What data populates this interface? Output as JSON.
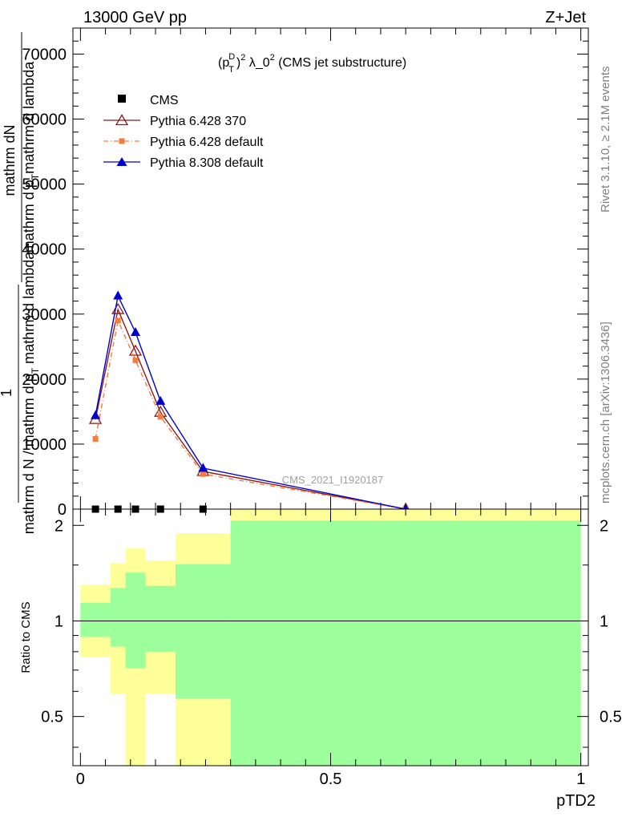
{
  "header": {
    "left": "13000 GeV pp",
    "right": "Z+Jet"
  },
  "side_text": {
    "rivet": "Rivet 3.1.10, ≥ 2.1M events",
    "mcplots": "mcplots.cern.ch [arXiv:1306.3436]"
  },
  "colors": {
    "cms": "#000000",
    "pythia6_370": "#8b1a1a",
    "pythia6_default": "#f47c3c",
    "pythia8_default": "#0000cc",
    "band_inner": "#9cff9c",
    "band_outer": "#ffff99"
  },
  "chart_data": [
    {
      "type": "line",
      "title_parts": {
        "base": "(p",
        "sub": "T",
        "sup1": "D",
        "sup2": "2",
        "rest": " λ_0",
        "sup3": "2",
        "tail": " (CMS jet substructure)"
      },
      "ylabel_numerator": "mathrm dN",
      "ylabel_numerator_1": "1",
      "ylabel_den_line1": "mathrm d p",
      "ylabel_den_sub": "T",
      "ylabel_den_line2": "mathrm d lambda",
      "ylabel_den_full": "mathrm d N / mathrm d p",
      "ylabel_den_sub2": "T",
      "ylabel_den_tail": " mathrm d lambda",
      "watermark": "CMS_2021_I1920187",
      "xlim": [
        -0.015,
        1.015
      ],
      "ylim": [
        0,
        74000
      ],
      "yticks": [
        0,
        10000,
        20000,
        30000,
        40000,
        50000,
        60000,
        70000
      ],
      "ytick_labels": [
        "0",
        "10000",
        "20000",
        "30000",
        "40000",
        "50000",
        "60000",
        "70000"
      ],
      "legend_position": "top-left",
      "series": [
        {
          "name": "CMS",
          "marker": "square",
          "x": [
            0.03,
            0.075,
            0.11,
            0.16,
            0.245
          ],
          "y": [
            0,
            0,
            0,
            0,
            0
          ]
        },
        {
          "name": "Pythia 6.428 370",
          "marker": "open-triangle",
          "x": [
            0.03,
            0.075,
            0.11,
            0.16,
            0.245,
            0.65
          ],
          "y": [
            13800,
            30700,
            24300,
            14900,
            5800,
            0
          ]
        },
        {
          "name": "Pythia 6.428 default",
          "marker": "small-square",
          "x": [
            0.03,
            0.075,
            0.11,
            0.16,
            0.245,
            0.65
          ],
          "y": [
            10800,
            29000,
            22900,
            14200,
            5400,
            0
          ]
        },
        {
          "name": "Pythia 8.308 default",
          "marker": "filled-triangle",
          "x": [
            0.03,
            0.075,
            0.11,
            0.16,
            0.245,
            0.65
          ],
          "y": [
            14400,
            32800,
            27200,
            16600,
            6300,
            0
          ]
        }
      ]
    },
    {
      "type": "area",
      "ylabel": "Ratio to CMS",
      "xlabel": "pTD2",
      "xlim": [
        -0.015,
        1.015
      ],
      "ylim": [
        0.35,
        2.25
      ],
      "yticks": [
        0.5,
        1,
        2
      ],
      "ytick_labels": [
        "0.5",
        "1",
        "2"
      ],
      "xticks": [
        0,
        0.5,
        1
      ],
      "xtick_labels": [
        "0",
        "0.5",
        "1"
      ],
      "reference_line": 1,
      "bands": [
        {
          "x0": 0.0,
          "x1": 0.06,
          "inner_lo": 0.89,
          "inner_hi": 1.14,
          "outer_lo": 0.77,
          "outer_hi": 1.3
        },
        {
          "x0": 0.06,
          "x1": 0.09,
          "inner_lo": 0.83,
          "inner_hi": 1.27,
          "outer_lo": 0.59,
          "outer_hi": 1.52
        },
        {
          "x0": 0.09,
          "x1": 0.13,
          "inner_lo": 0.71,
          "inner_hi": 1.42,
          "outer_lo": 0.35,
          "outer_hi": 1.69
        },
        {
          "x0": 0.13,
          "x1": 0.19,
          "inner_lo": 0.8,
          "inner_hi": 1.29,
          "outer_lo": 0.59,
          "outer_hi": 1.55
        },
        {
          "x0": 0.19,
          "x1": 0.3,
          "inner_lo": 0.57,
          "inner_hi": 1.51,
          "outer_lo": 0.35,
          "outer_hi": 1.89
        },
        {
          "x0": 0.3,
          "x1": 1.0,
          "inner_lo": 0.35,
          "inner_hi": 2.07,
          "outer_lo": 0.35,
          "outer_hi": 2.25
        }
      ]
    }
  ]
}
